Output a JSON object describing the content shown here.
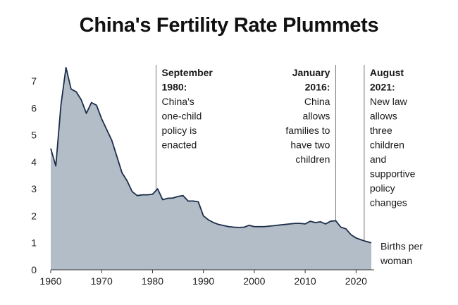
{
  "chart_data": {
    "type": "area",
    "title": "China's Fertility Rate Plummets",
    "xlabel": "",
    "ylabel": "",
    "series_label": "Births per woman",
    "xlim": [
      1960,
      2023
    ],
    "ylim": [
      0,
      7.6
    ],
    "xticks": [
      1960,
      1970,
      1980,
      1990,
      2000,
      2010,
      2020
    ],
    "yticks": [
      0,
      1,
      2,
      3,
      4,
      5,
      6,
      7
    ],
    "grid": false,
    "colors": {
      "fill": "#b3bdc8",
      "line": "#1b2d4a",
      "annotation_line": "#777777"
    },
    "x": [
      1960,
      1961,
      1962,
      1963,
      1964,
      1965,
      1966,
      1967,
      1968,
      1969,
      1970,
      1971,
      1972,
      1973,
      1974,
      1975,
      1976,
      1977,
      1978,
      1979,
      1980,
      1981,
      1982,
      1983,
      1984,
      1985,
      1986,
      1987,
      1988,
      1989,
      1990,
      1991,
      1992,
      1993,
      1994,
      1995,
      1996,
      1997,
      1998,
      1999,
      2000,
      2001,
      2002,
      2003,
      2004,
      2005,
      2006,
      2007,
      2008,
      2009,
      2010,
      2011,
      2012,
      2013,
      2014,
      2015,
      2016,
      2017,
      2018,
      2019,
      2020,
      2021,
      2022,
      2023
    ],
    "values": [
      4.5,
      3.85,
      6.1,
      7.5,
      6.7,
      6.6,
      6.3,
      5.8,
      6.2,
      6.1,
      5.6,
      5.2,
      4.8,
      4.2,
      3.6,
      3.3,
      2.9,
      2.75,
      2.78,
      2.78,
      2.8,
      3.0,
      2.6,
      2.65,
      2.66,
      2.72,
      2.75,
      2.55,
      2.55,
      2.52,
      2.0,
      1.85,
      1.75,
      1.68,
      1.64,
      1.6,
      1.58,
      1.57,
      1.58,
      1.65,
      1.6,
      1.6,
      1.6,
      1.62,
      1.64,
      1.66,
      1.68,
      1.7,
      1.72,
      1.72,
      1.7,
      1.8,
      1.75,
      1.78,
      1.7,
      1.8,
      1.82,
      1.58,
      1.52,
      1.3,
      1.18,
      1.11,
      1.05,
      1.0
    ],
    "annotations": [
      {
        "x": 1980.7,
        "align": "left",
        "date": [
          "September",
          "1980:"
        ],
        "text": [
          "China's",
          "one-child",
          "policy is",
          "enacted"
        ]
      },
      {
        "x": 2016,
        "align": "right",
        "date": [
          "January",
          "2016:"
        ],
        "text": [
          "China",
          "allows",
          "families to",
          "have two",
          "children"
        ]
      },
      {
        "x": 2021.6,
        "align": "left",
        "date": [
          "August",
          "2021:"
        ],
        "text": [
          "New law",
          "allows",
          "three",
          "children",
          "and",
          "supportive",
          "policy",
          "changes"
        ]
      }
    ],
    "series_label_lines": [
      "Births per",
      "woman"
    ]
  }
}
